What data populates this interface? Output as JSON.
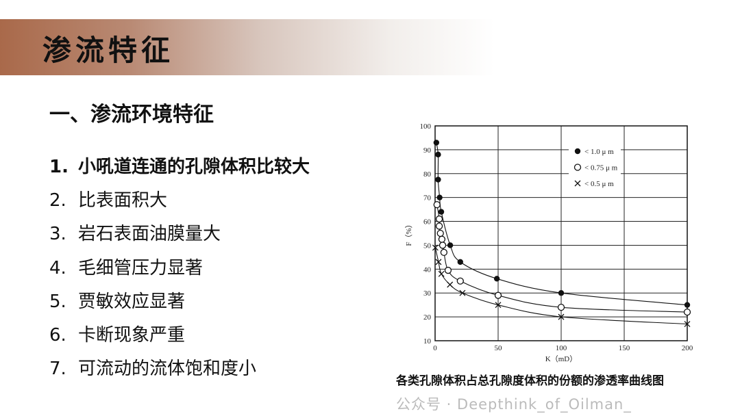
{
  "header": {
    "title": "渗流特征"
  },
  "section": {
    "heading": "一、渗流环境特征"
  },
  "items": [
    {
      "num": "1.",
      "text": "小吼道连通的孔隙体积比较大",
      "bold": true
    },
    {
      "num": "2.",
      "text": "比表面积大"
    },
    {
      "num": "3.",
      "text": "岩石表面油膜量大"
    },
    {
      "num": "4.",
      "text": "毛细管压力显著"
    },
    {
      "num": "5.",
      "text": "贾敏效应显著"
    },
    {
      "num": "6.",
      "text": "卡断现象严重"
    },
    {
      "num": "7.",
      "text": "可流动的流体饱和度小"
    }
  ],
  "caption": "各类孔隙体积占总孔隙度体积的份额的渗透率曲线图",
  "watermark": "公众号 · Deepthink_of_Oilman_",
  "chart_data": {
    "type": "line",
    "xlabel": "K（mD）",
    "ylabel": "F（%）",
    "xlim": [
      0,
      200
    ],
    "ylim": [
      10,
      100
    ],
    "xticks": [
      0,
      50,
      100,
      150,
      200
    ],
    "yticks": [
      10,
      20,
      30,
      40,
      50,
      60,
      70,
      80,
      90,
      100
    ],
    "grid": true,
    "legend_position": "top-right",
    "series": [
      {
        "name": "< 1.0 μ m",
        "marker": "filled-circle",
        "points": [
          [
            1,
            93
          ],
          [
            2.4,
            88
          ],
          [
            2.4,
            77.5
          ],
          [
            3.6,
            70
          ],
          [
            4.9,
            64
          ],
          [
            12,
            50
          ],
          [
            20,
            43
          ],
          [
            49,
            36
          ],
          [
            100,
            30
          ],
          [
            200,
            25
          ]
        ]
      },
      {
        "name": "< 0.75 μ m",
        "marker": "open-circle",
        "points": [
          [
            1.5,
            67
          ],
          [
            3.3,
            61
          ],
          [
            3.3,
            58
          ],
          [
            4.2,
            55
          ],
          [
            5.4,
            52.5
          ],
          [
            6,
            50
          ],
          [
            7,
            47
          ],
          [
            10.3,
            39.5
          ],
          [
            20,
            35
          ],
          [
            50,
            29
          ],
          [
            100,
            24
          ],
          [
            200,
            22
          ]
        ]
      },
      {
        "name": "< 0.5 μ m",
        "marker": "cross",
        "points": [
          [
            0.2,
            49
          ],
          [
            2.7,
            43
          ],
          [
            5,
            38
          ],
          [
            11.8,
            33.5
          ],
          [
            21.7,
            30
          ],
          [
            50,
            25
          ],
          [
            100,
            20
          ],
          [
            200,
            17
          ]
        ]
      }
    ]
  }
}
